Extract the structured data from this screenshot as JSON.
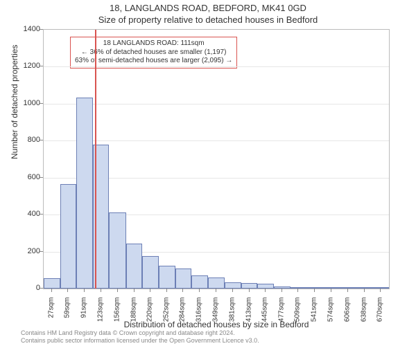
{
  "title_line1": "18, LANGLANDS ROAD, BEDFORD, MK41 0GD",
  "title_line2": "Size of property relative to detached houses in Bedford",
  "y_axis_label": "Number of detached properties",
  "x_axis_label": "Distribution of detached houses by size in Bedford",
  "footer_line1": "Contains HM Land Registry data © Crown copyright and database right 2024.",
  "footer_line2": "Contains public sector information licensed under the Open Government Licence v3.0.",
  "annotation": {
    "line1": "18 LANGLANDS ROAD: 111sqm",
    "line2": "← 36% of detached houses are smaller (1,197)",
    "line3": "63% of semi-detached houses are larger (2,095) →"
  },
  "chart": {
    "type": "histogram",
    "background_color": "#ffffff",
    "bar_fill": "#cdd9ef",
    "bar_border": "#6c7fb5",
    "bar_border_width": 1,
    "grid_color": "#e6e6e6",
    "axis_color": "#bbbbbb",
    "reference_line_color": "#d9534f",
    "reference_value": 111,
    "x_min": 11,
    "x_max": 686,
    "y_min": 0,
    "y_max": 1400,
    "y_ticks": [
      0,
      200,
      400,
      600,
      800,
      1000,
      1200,
      1400
    ],
    "x_ticks": [
      27,
      59,
      91,
      123,
      156,
      188,
      220,
      252,
      284,
      316,
      349,
      381,
      413,
      445,
      477,
      509,
      541,
      574,
      606,
      638,
      670
    ],
    "x_tick_suffix": "sqm",
    "bars": [
      {
        "x0": 11,
        "x1": 43,
        "y": 55
      },
      {
        "x0": 43,
        "x1": 75,
        "y": 565
      },
      {
        "x0": 75,
        "x1": 107,
        "y": 1035
      },
      {
        "x0": 107,
        "x1": 139,
        "y": 780
      },
      {
        "x0": 139,
        "x1": 172,
        "y": 410
      },
      {
        "x0": 172,
        "x1": 204,
        "y": 245
      },
      {
        "x0": 204,
        "x1": 236,
        "y": 175
      },
      {
        "x0": 236,
        "x1": 268,
        "y": 125
      },
      {
        "x0": 268,
        "x1": 300,
        "y": 110
      },
      {
        "x0": 300,
        "x1": 332,
        "y": 70
      },
      {
        "x0": 332,
        "x1": 365,
        "y": 60
      },
      {
        "x0": 365,
        "x1": 397,
        "y": 35
      },
      {
        "x0": 397,
        "x1": 429,
        "y": 30
      },
      {
        "x0": 429,
        "x1": 461,
        "y": 25
      },
      {
        "x0": 461,
        "x1": 493,
        "y": 10
      },
      {
        "x0": 493,
        "x1": 525,
        "y": 3
      },
      {
        "x0": 525,
        "x1": 557,
        "y": 3
      },
      {
        "x0": 557,
        "x1": 590,
        "y": 2
      },
      {
        "x0": 590,
        "x1": 622,
        "y": 2
      },
      {
        "x0": 622,
        "x1": 654,
        "y": 2
      },
      {
        "x0": 654,
        "x1": 686,
        "y": 2
      }
    ],
    "title_fontsize": 13,
    "label_fontsize": 12,
    "tick_fontsize": 10
  }
}
